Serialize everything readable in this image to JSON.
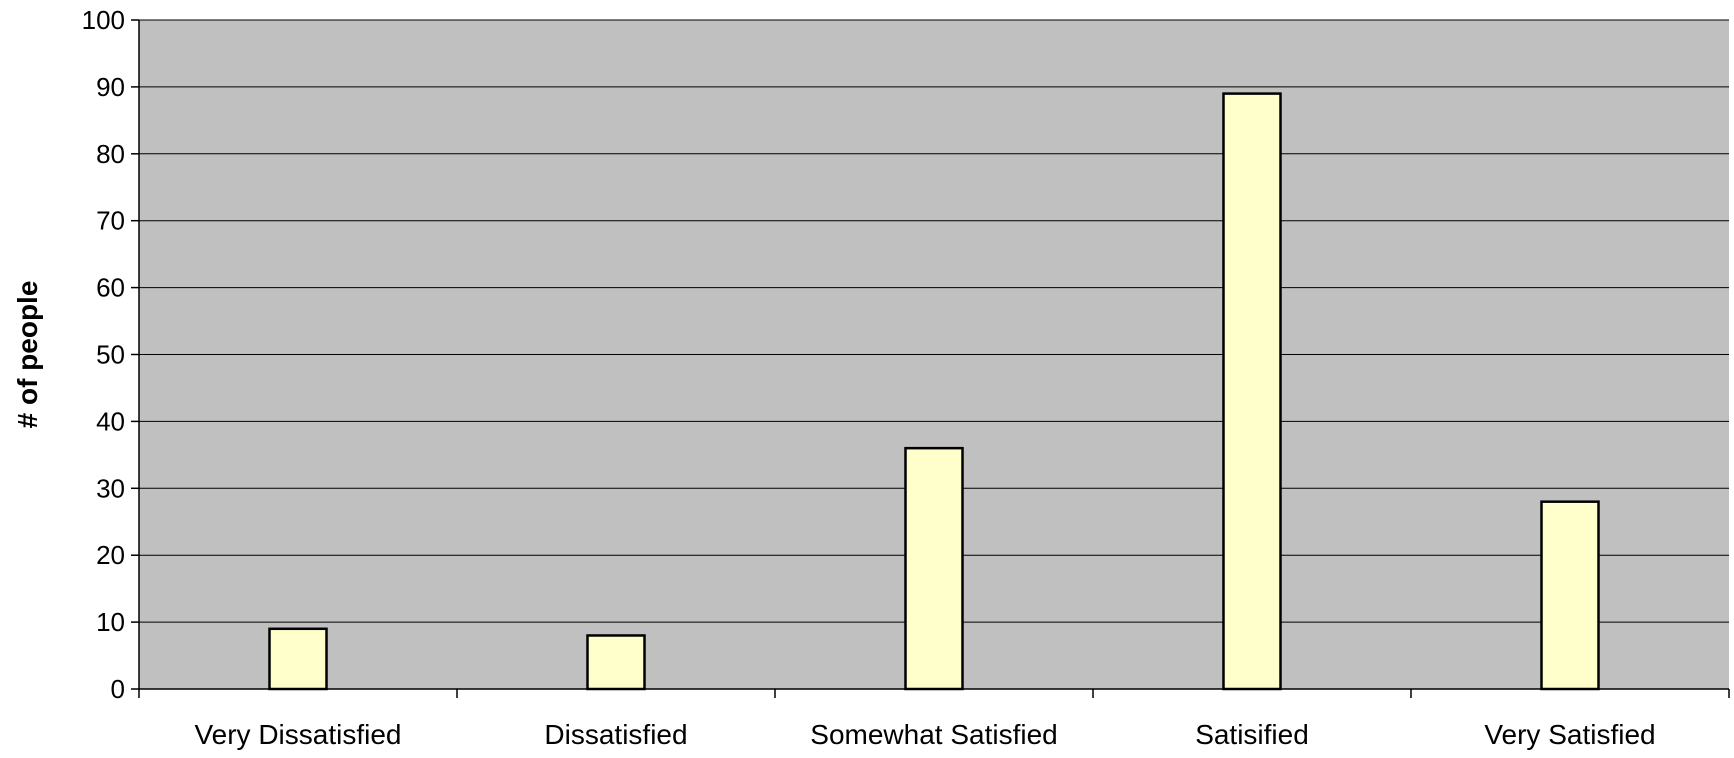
{
  "chart_data": {
    "type": "bar",
    "title": "",
    "xlabel": "",
    "ylabel": "# of people",
    "categories": [
      "Very Dissatisfied",
      "Dissatisfied",
      "Somewhat Satisfied",
      "Satisified",
      "Very Satisfied"
    ],
    "values": [
      9,
      8,
      36,
      89,
      28
    ],
    "ylim": [
      0,
      100
    ],
    "yticks": [
      0,
      10,
      20,
      30,
      40,
      50,
      60,
      70,
      80,
      90,
      100
    ],
    "grid": true,
    "legend": "none",
    "colors": {
      "plot_background": "#c0c0c0",
      "bar_fill": "#ffffcc",
      "bar_stroke": "#000000",
      "gridline": "#000000"
    }
  }
}
